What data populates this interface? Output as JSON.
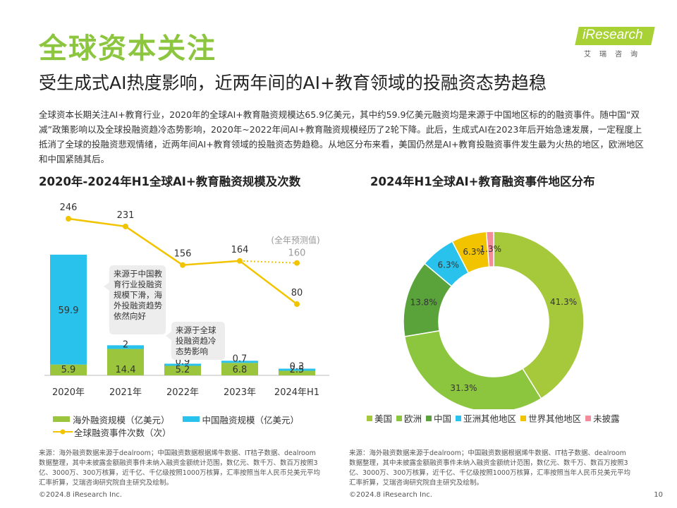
{
  "page": {
    "title": "全球资本关注",
    "subtitle": "受生成式AI热度影响，近两年间的AI+教育领域的投融资态势趋稳",
    "intro": "全球资本长期关注AI+教育行业，2020年的全球AI+教育融资规模达65.9亿美元，其中约59.9亿美元融资均是来源于中国地区标的的融资事件。随中国“双减”政策影响以及全球投融资趋冷态势影响，2020年~2022年间AI+教育融资规模经历了2轮下降。此后，生成式AI在2023年后开始急速发展，一定程度上抵消了全球的投融资悲观情绪，近两年间AI+教育领域的投融资态势趋稳。从地区分布来看，美国仍然是AI+教育投融资事件发生最为火热的地区，欧洲地区和中国紧随其后。",
    "page_number": "10"
  },
  "logo": {
    "text": "iResearch",
    "sub": "艾瑞咨询"
  },
  "colors": {
    "accent": "#8cc63f",
    "overseas": "#9bc53d",
    "china": "#29c2ec",
    "line": "#f2c400"
  },
  "chart_data": [
    {
      "type": "bar",
      "title": "2020年-2024年H1全球AI+教育融资规模及次数",
      "categories": [
        "2020年",
        "2021年",
        "2022年",
        "2023年",
        "2024年H1"
      ],
      "series": [
        {
          "name": "海外融资规模（亿美元）",
          "values": [
            5.9,
            14.4,
            5.2,
            6.8,
            2.5
          ],
          "color": "#9bc53d"
        },
        {
          "name": "中国融资规模（亿美元）",
          "values": [
            59.9,
            2.0,
            0.9,
            0.7,
            0.3
          ],
          "color": "#29c2ec"
        },
        {
          "name": "全球融资事件次数数（次）",
          "values": [
            246,
            231,
            156,
            164,
            80
          ],
          "color": "#f2c400",
          "line": true
        }
      ],
      "forecast": {
        "label": "(全年预测值)",
        "value": 160,
        "from_index": 3
      },
      "annotations": [
        {
          "text": "来源于中国教育行业投融资规模下滑，海外投融资趋势依然向好"
        },
        {
          "text": "来源于全球投融资趋冷态势影响"
        }
      ],
      "legend": {
        "overseas": "海外融资规模（亿美元）",
        "china": "中国融资规模（亿美元）",
        "events": "全球融资事件次数（次）"
      }
    },
    {
      "type": "pie",
      "title": "2024年H1全球AI+教育融资事件地区分布",
      "slices": [
        {
          "name": "美国",
          "value": 41.3,
          "label": "41.3%",
          "color": "#a5c93a"
        },
        {
          "name": "欧洲",
          "value": 31.3,
          "label": "31.3%",
          "color": "#8cc63f"
        },
        {
          "name": "中国",
          "value": 13.8,
          "label": "13.8%",
          "color": "#5aa33a"
        },
        {
          "name": "亚洲其他地区",
          "value": 6.3,
          "label": "6.3%",
          "color": "#29c2ec"
        },
        {
          "name": "世界其他地区",
          "value": 6.3,
          "label": "6.3%",
          "color": "#f2c400"
        },
        {
          "name": "未披露",
          "value": 1.3,
          "label": "1.3%",
          "color": "#f28b9a"
        }
      ]
    }
  ],
  "source_left": "来源：海外融资数据来源于dealroom；中国融资数据根据烯牛数据、IT桔子数据、dealroom数据整理，其中未披露金额融资事件未纳入融资金额统计范围，数亿元、数千万、数百万按照3亿、3000万、300万核算，近千亿、千亿级按照1000万核算，汇率按照当年人民币兑美元平均汇率折算，艾瑞咨询研究院自主研究及绘制。",
  "source_right": "来源：海外融资数据来源于dealroom；中国融资数据根据烯牛数据、IT桔子数据、dealroom数据整理，其中未披露金额融资事件未纳入融资金额统计范围，数亿元、数千万、数百万按照3亿、3000万、300万核算，近千亿、千亿级按照1000万核算，汇率按照当年人民币兑美元平均汇率折算，艾瑞咨询研究院自主研究及绘制。",
  "copyright": "©2024.8 iResearch Inc."
}
